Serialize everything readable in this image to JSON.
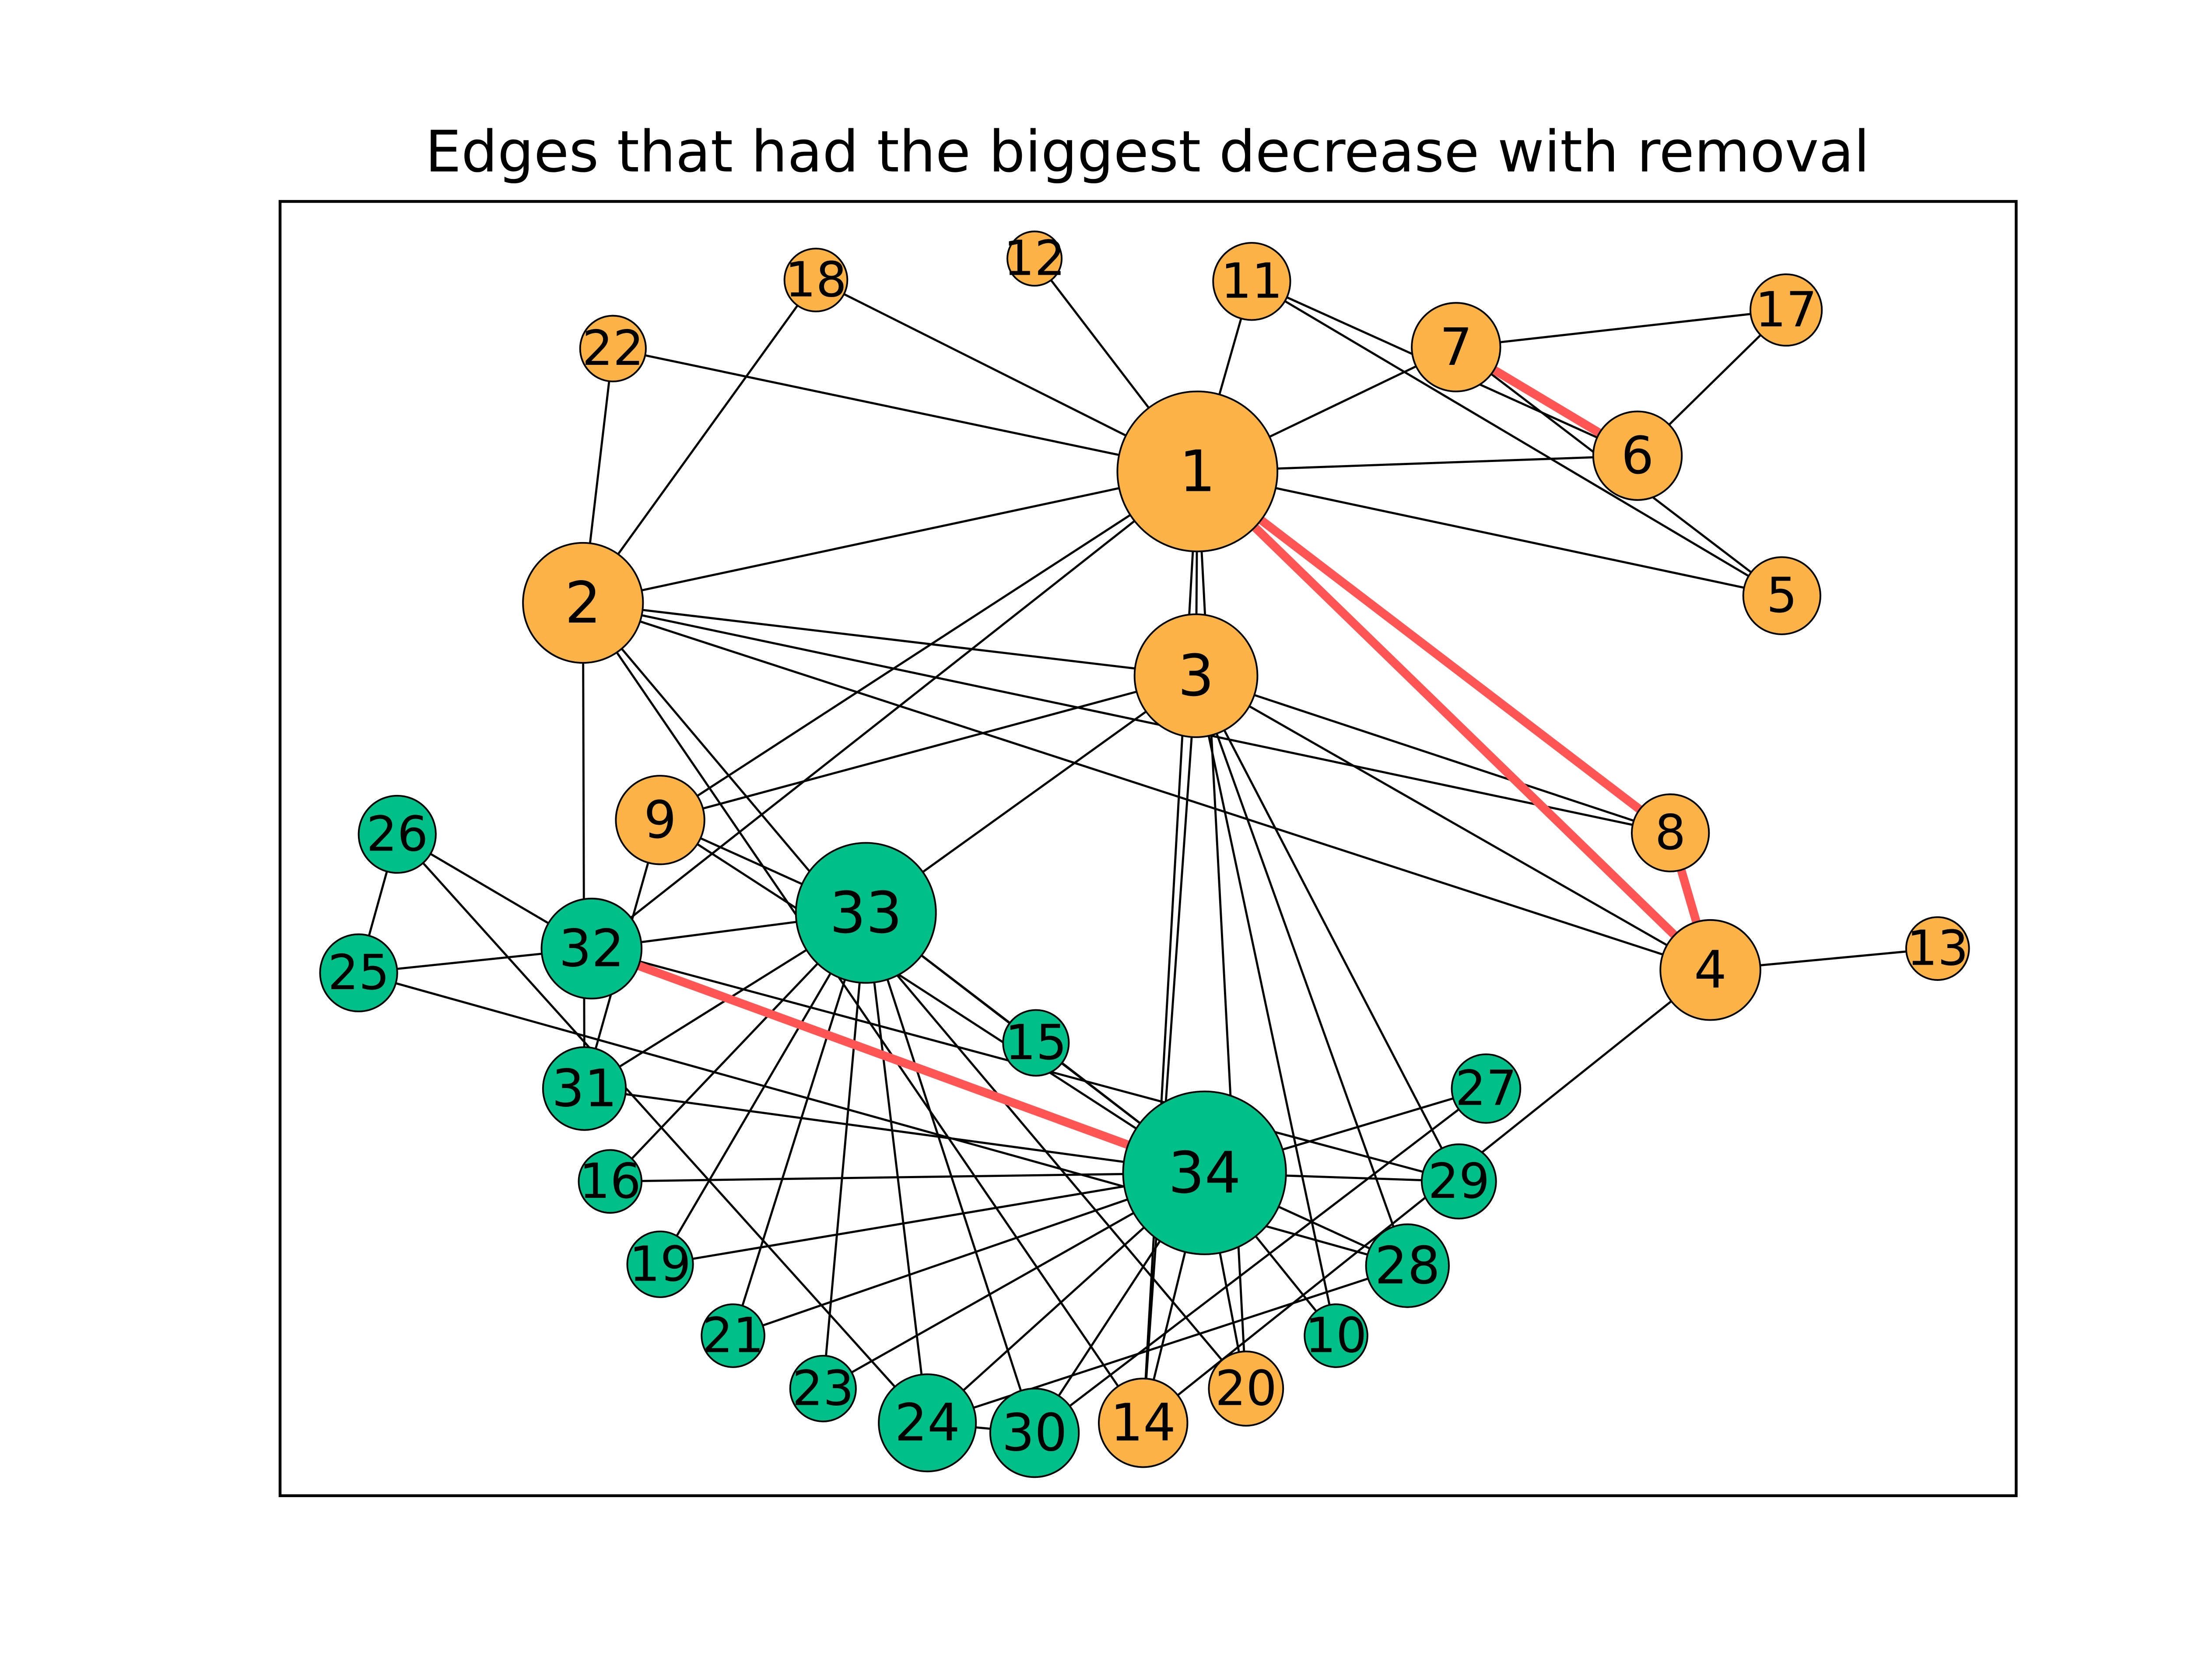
{
  "title": "Edges that had the biggest decrease with removal",
  "colors": {
    "community_a": "#fbb348",
    "community_b": "#00bf89",
    "highlight_edge": "#ff5555",
    "edge": "#000000"
  },
  "nodes": [
    {
      "id": "1",
      "label": "1",
      "group": "a"
    },
    {
      "id": "2",
      "label": "2",
      "group": "a"
    },
    {
      "id": "3",
      "label": "3",
      "group": "a"
    },
    {
      "id": "4",
      "label": "4",
      "group": "a"
    },
    {
      "id": "5",
      "label": "5",
      "group": "a"
    },
    {
      "id": "6",
      "label": "6",
      "group": "a"
    },
    {
      "id": "7",
      "label": "7",
      "group": "a"
    },
    {
      "id": "8",
      "label": "8",
      "group": "a"
    },
    {
      "id": "9",
      "label": "9",
      "group": "a"
    },
    {
      "id": "10",
      "label": "10",
      "group": "b"
    },
    {
      "id": "11",
      "label": "11",
      "group": "a"
    },
    {
      "id": "12",
      "label": "12",
      "group": "a"
    },
    {
      "id": "13",
      "label": "13",
      "group": "a"
    },
    {
      "id": "14",
      "label": "14",
      "group": "a"
    },
    {
      "id": "15",
      "label": "15",
      "group": "b"
    },
    {
      "id": "16",
      "label": "16",
      "group": "b"
    },
    {
      "id": "17",
      "label": "17",
      "group": "a"
    },
    {
      "id": "18",
      "label": "18",
      "group": "a"
    },
    {
      "id": "19",
      "label": "19",
      "group": "b"
    },
    {
      "id": "20",
      "label": "20",
      "group": "a"
    },
    {
      "id": "21",
      "label": "21",
      "group": "b"
    },
    {
      "id": "22",
      "label": "22",
      "group": "a"
    },
    {
      "id": "23",
      "label": "23",
      "group": "b"
    },
    {
      "id": "24",
      "label": "24",
      "group": "b"
    },
    {
      "id": "25",
      "label": "25",
      "group": "b"
    },
    {
      "id": "26",
      "label": "26",
      "group": "b"
    },
    {
      "id": "27",
      "label": "27",
      "group": "b"
    },
    {
      "id": "28",
      "label": "28",
      "group": "b"
    },
    {
      "id": "29",
      "label": "29",
      "group": "b"
    },
    {
      "id": "30",
      "label": "30",
      "group": "b"
    },
    {
      "id": "31",
      "label": "31",
      "group": "b"
    },
    {
      "id": "32",
      "label": "32",
      "group": "b"
    },
    {
      "id": "33",
      "label": "33",
      "group": "b"
    },
    {
      "id": "34",
      "label": "34",
      "group": "b"
    }
  ],
  "edges": [
    [
      "1",
      "2"
    ],
    [
      "1",
      "3"
    ],
    [
      "1",
      "4"
    ],
    [
      "1",
      "5"
    ],
    [
      "1",
      "6"
    ],
    [
      "1",
      "7"
    ],
    [
      "1",
      "8"
    ],
    [
      "1",
      "9"
    ],
    [
      "1",
      "11"
    ],
    [
      "1",
      "12"
    ],
    [
      "1",
      "14"
    ],
    [
      "1",
      "18"
    ],
    [
      "1",
      "20"
    ],
    [
      "1",
      "22"
    ],
    [
      "1",
      "32"
    ],
    [
      "2",
      "3"
    ],
    [
      "2",
      "4"
    ],
    [
      "2",
      "8"
    ],
    [
      "2",
      "14"
    ],
    [
      "2",
      "18"
    ],
    [
      "2",
      "20"
    ],
    [
      "2",
      "22"
    ],
    [
      "2",
      "31"
    ],
    [
      "3",
      "4"
    ],
    [
      "3",
      "8"
    ],
    [
      "3",
      "9"
    ],
    [
      "3",
      "10"
    ],
    [
      "3",
      "14"
    ],
    [
      "3",
      "28"
    ],
    [
      "3",
      "29"
    ],
    [
      "3",
      "33"
    ],
    [
      "4",
      "8"
    ],
    [
      "4",
      "13"
    ],
    [
      "4",
      "14"
    ],
    [
      "5",
      "7"
    ],
    [
      "5",
      "11"
    ],
    [
      "6",
      "7"
    ],
    [
      "6",
      "11"
    ],
    [
      "6",
      "17"
    ],
    [
      "7",
      "17"
    ],
    [
      "9",
      "31"
    ],
    [
      "9",
      "33"
    ],
    [
      "9",
      "34"
    ],
    [
      "10",
      "34"
    ],
    [
      "14",
      "34"
    ],
    [
      "15",
      "33"
    ],
    [
      "15",
      "34"
    ],
    [
      "16",
      "33"
    ],
    [
      "16",
      "34"
    ],
    [
      "19",
      "33"
    ],
    [
      "19",
      "34"
    ],
    [
      "20",
      "34"
    ],
    [
      "21",
      "33"
    ],
    [
      "21",
      "34"
    ],
    [
      "23",
      "33"
    ],
    [
      "23",
      "34"
    ],
    [
      "24",
      "26"
    ],
    [
      "24",
      "28"
    ],
    [
      "24",
      "30"
    ],
    [
      "24",
      "33"
    ],
    [
      "24",
      "34"
    ],
    [
      "25",
      "26"
    ],
    [
      "25",
      "28"
    ],
    [
      "25",
      "32"
    ],
    [
      "26",
      "32"
    ],
    [
      "27",
      "30"
    ],
    [
      "27",
      "34"
    ],
    [
      "28",
      "34"
    ],
    [
      "29",
      "32"
    ],
    [
      "29",
      "34"
    ],
    [
      "30",
      "33"
    ],
    [
      "30",
      "34"
    ],
    [
      "31",
      "33"
    ],
    [
      "31",
      "34"
    ],
    [
      "32",
      "33"
    ],
    [
      "32",
      "34"
    ],
    [
      "33",
      "34"
    ]
  ],
  "highlighted_edges": [
    [
      "1",
      "4"
    ],
    [
      "1",
      "8"
    ],
    [
      "4",
      "8"
    ],
    [
      "6",
      "7"
    ],
    [
      "32",
      "34"
    ]
  ]
}
